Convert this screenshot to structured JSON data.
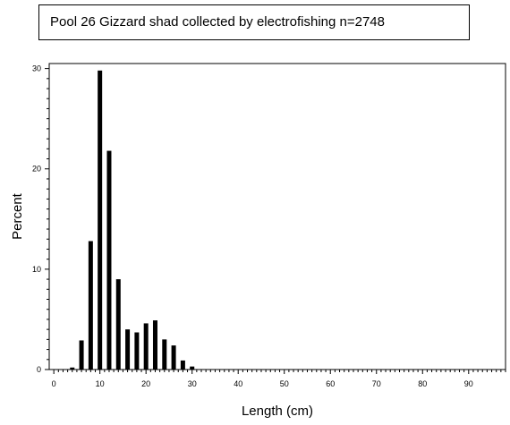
{
  "chart_data": {
    "type": "bar",
    "title": "Pool 26 Gizzard shad collected by electrofishing   n=2748",
    "xlabel": "Length (cm)",
    "ylabel": "Percent",
    "xlim": [
      -1,
      98
    ],
    "ylim": [
      0,
      30.5
    ],
    "x_ticks": [
      0,
      10,
      20,
      30,
      40,
      50,
      60,
      70,
      80,
      90
    ],
    "x_tick_labels": [
      "0",
      "10",
      "20",
      "30",
      "40",
      "50",
      "60",
      "70",
      "80",
      "90"
    ],
    "y_ticks": [
      0,
      10,
      20,
      30
    ],
    "y_tick_labels": [
      "0",
      "10",
      "20",
      "30"
    ],
    "x": [
      4,
      6,
      8,
      10,
      12,
      14,
      16,
      18,
      20,
      22,
      24,
      26,
      28,
      30
    ],
    "values": [
      0.2,
      2.9,
      12.8,
      29.8,
      21.8,
      9.0,
      4.0,
      3.7,
      4.6,
      4.9,
      3.0,
      2.4,
      0.9,
      0.3
    ],
    "bar_color": "#000000",
    "grid": false,
    "legend": "none"
  }
}
